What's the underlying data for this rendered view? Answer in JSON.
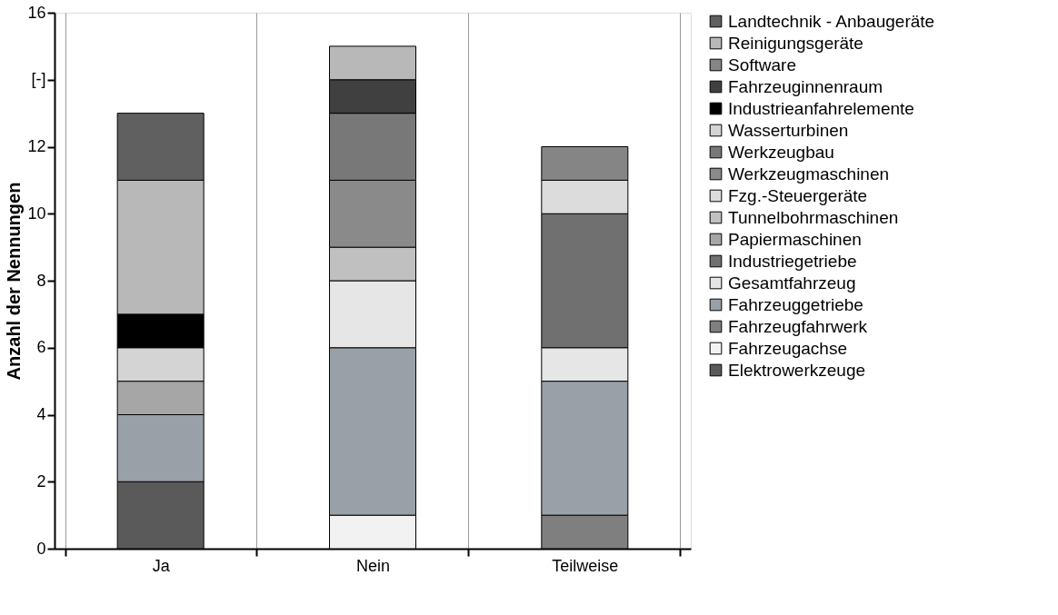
{
  "chart_data": {
    "type": "bar",
    "stacked": true,
    "ylabel": "Anzahl der Nennungen",
    "categories": [
      "Ja",
      "Nein",
      "Teilweise"
    ],
    "ylim": [
      0,
      16
    ],
    "yticks": [
      0,
      2,
      4,
      6,
      8,
      10,
      12,
      {
        "value": 14,
        "label": "[-]"
      },
      16
    ],
    "grid": "x",
    "legend": "right",
    "series": [
      {
        "name": "Elektrowerkzeuge",
        "color": "#5a5a5a",
        "values": [
          2,
          null,
          null
        ]
      },
      {
        "name": "Fahrzeugachse",
        "color": "#f2f2f2",
        "values": [
          null,
          1,
          null
        ]
      },
      {
        "name": "Fahrzeugfahrwerk",
        "color": "#7f7f7f",
        "values": [
          null,
          null,
          1
        ]
      },
      {
        "name": "Fahrzeuggetriebe",
        "color": "#9aa0a8",
        "values": [
          2,
          5,
          4
        ]
      },
      {
        "name": "Gesamtfahrzeug",
        "color": "#e6e6e6",
        "values": [
          null,
          2,
          1
        ]
      },
      {
        "name": "Industriegetriebe",
        "color": "#707070",
        "values": [
          null,
          null,
          4
        ]
      },
      {
        "name": "Papiermaschinen",
        "color": "#a6a6a6",
        "values": [
          1,
          null,
          null
        ]
      },
      {
        "name": "Tunnelbohrmaschinen",
        "color": "#c0c0c0",
        "values": [
          null,
          1,
          null
        ]
      },
      {
        "name": "Fzg.-Steuergeräte",
        "color": "#dcdcdc",
        "values": [
          null,
          null,
          1
        ]
      },
      {
        "name": "Werkzeugmaschinen",
        "color": "#8a8a8a",
        "values": [
          null,
          2,
          null
        ]
      },
      {
        "name": "Werkzeugbau",
        "color": "#787878",
        "values": [
          null,
          2,
          null
        ]
      },
      {
        "name": "Wasserturbinen",
        "color": "#d4d4d4",
        "values": [
          1,
          null,
          null
        ]
      },
      {
        "name": "Industrieanfahrelemente",
        "color": "#000000",
        "values": [
          1,
          null,
          null
        ]
      },
      {
        "name": "Fahrzeuginnenraum",
        "color": "#404040",
        "values": [
          null,
          1,
          null
        ]
      },
      {
        "name": "Software",
        "color": "#858585",
        "values": [
          null,
          null,
          1
        ]
      },
      {
        "name": "Reinigungsgeräte",
        "color": "#b8b8b8",
        "values": [
          4,
          1,
          null
        ]
      },
      {
        "name": "Landtechnik - Anbaugeräte",
        "color": "#606060",
        "values": [
          2,
          null,
          null
        ]
      }
    ]
  }
}
